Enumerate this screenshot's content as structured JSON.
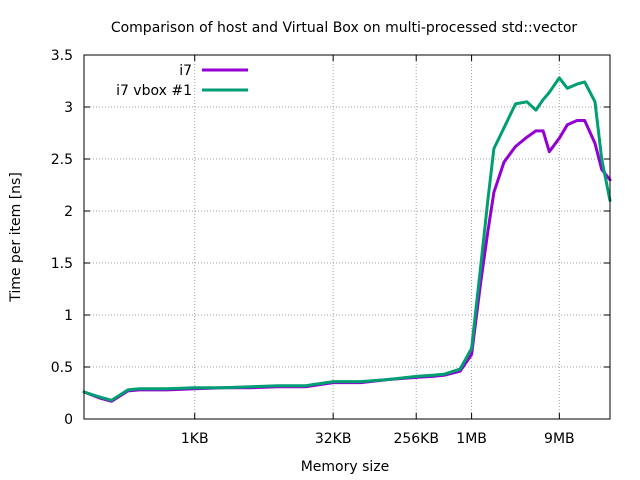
{
  "chart_data": {
    "type": "line",
    "title": "Comparison of host and Virtual Box on multi-processed std::vector",
    "xlabel": "Memory size",
    "ylabel": "Time per item [ns]",
    "x_scale": "log2",
    "x_unit": "bytes",
    "xlim": [
      64,
      33554432
    ],
    "ylim": [
      0,
      3.5
    ],
    "y_ticks": [
      "0",
      "0.5",
      "1",
      "1.5",
      "2",
      "2.5",
      "3",
      "3.5"
    ],
    "x_ticks": [
      {
        "value": 1024,
        "label": "1KB"
      },
      {
        "value": 32768,
        "label": "32KB"
      },
      {
        "value": 262144,
        "label": "256KB"
      },
      {
        "value": 1048576,
        "label": "1MB"
      },
      {
        "value": 9437184,
        "label": "9MB"
      }
    ],
    "grid": true,
    "legend_position": "top-left",
    "series": [
      {
        "name": "i7",
        "color": "#9400d3",
        "points": [
          [
            64,
            0.26
          ],
          [
            96,
            0.2
          ],
          [
            128,
            0.17
          ],
          [
            192,
            0.27
          ],
          [
            256,
            0.28
          ],
          [
            384,
            0.28
          ],
          [
            512,
            0.28
          ],
          [
            1024,
            0.29
          ],
          [
            2048,
            0.3
          ],
          [
            4096,
            0.3
          ],
          [
            8192,
            0.31
          ],
          [
            16384,
            0.31
          ],
          [
            32768,
            0.35
          ],
          [
            65536,
            0.35
          ],
          [
            131072,
            0.38
          ],
          [
            262144,
            0.4
          ],
          [
            393216,
            0.41
          ],
          [
            524288,
            0.42
          ],
          [
            786432,
            0.46
          ],
          [
            1048576,
            0.62
          ],
          [
            1310720,
            1.3
          ],
          [
            1572864,
            1.8
          ],
          [
            1835008,
            2.18
          ],
          [
            2359296,
            2.47
          ],
          [
            3145728,
            2.62
          ],
          [
            4194304,
            2.71
          ],
          [
            5242880,
            2.77
          ],
          [
            6291456,
            2.77
          ],
          [
            7340032,
            2.57
          ],
          [
            9437184,
            2.7
          ],
          [
            11534336,
            2.83
          ],
          [
            14680064,
            2.87
          ],
          [
            17825792,
            2.87
          ],
          [
            23068672,
            2.65
          ],
          [
            27262976,
            2.4
          ],
          [
            33554432,
            2.3
          ]
        ]
      },
      {
        "name": "i7 vbox #1",
        "color": "#009e73",
        "points": [
          [
            64,
            0.26
          ],
          [
            96,
            0.21
          ],
          [
            128,
            0.18
          ],
          [
            192,
            0.28
          ],
          [
            256,
            0.29
          ],
          [
            384,
            0.29
          ],
          [
            512,
            0.29
          ],
          [
            1024,
            0.3
          ],
          [
            2048,
            0.3
          ],
          [
            4096,
            0.31
          ],
          [
            8192,
            0.32
          ],
          [
            16384,
            0.32
          ],
          [
            32768,
            0.36
          ],
          [
            65536,
            0.36
          ],
          [
            131072,
            0.38
          ],
          [
            262144,
            0.41
          ],
          [
            393216,
            0.42
          ],
          [
            524288,
            0.43
          ],
          [
            786432,
            0.48
          ],
          [
            1048576,
            0.68
          ],
          [
            1310720,
            1.45
          ],
          [
            1572864,
            2.1
          ],
          [
            1835008,
            2.6
          ],
          [
            2359296,
            2.8
          ],
          [
            3145728,
            3.03
          ],
          [
            4194304,
            3.05
          ],
          [
            5242880,
            2.97
          ],
          [
            6291456,
            3.07
          ],
          [
            7340032,
            3.14
          ],
          [
            9437184,
            3.28
          ],
          [
            11534336,
            3.18
          ],
          [
            14680064,
            3.22
          ],
          [
            17825792,
            3.24
          ],
          [
            23068672,
            3.05
          ],
          [
            27262976,
            2.5
          ],
          [
            33554432,
            2.1
          ]
        ]
      }
    ]
  }
}
